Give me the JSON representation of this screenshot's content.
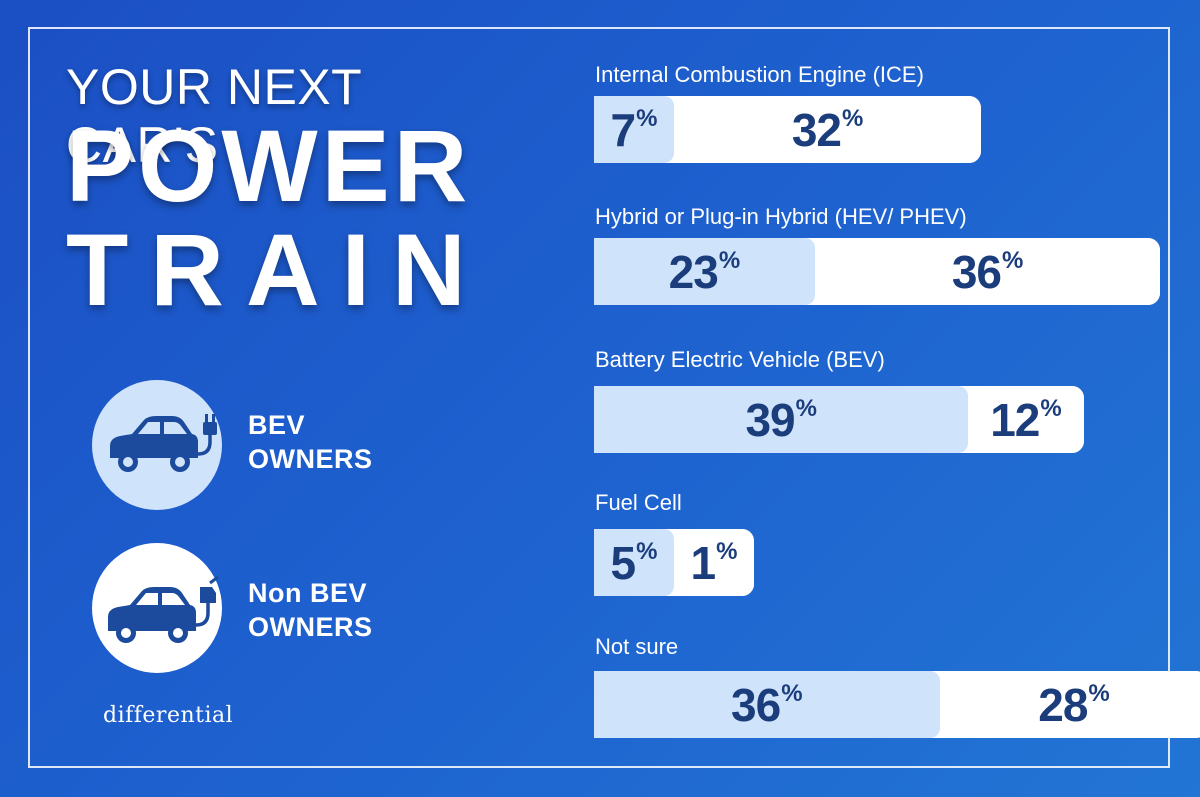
{
  "title": {
    "line1": "YOUR NEXT CAR’S",
    "line2": "POWER",
    "line3": "TRAIN"
  },
  "legend": {
    "bev": {
      "line1": "BEV",
      "line2": "OWNERS",
      "icon": "electric-car-plug-icon",
      "color": "#cfe3fb"
    },
    "non_bev": {
      "line1": "Non BEV",
      "line2": "OWNERS",
      "icon": "car-fuel-pump-icon",
      "color": "#ffffff"
    }
  },
  "brand": "differential",
  "colors": {
    "background": "#1e5fce",
    "text_values": "#1c3d7c",
    "bev": "#cfe3fb",
    "non_bev": "#ffffff"
  },
  "chart_data": {
    "type": "bar",
    "orientation": "horizontal",
    "stacked": true,
    "categories": [
      "Internal Combustion Engine (ICE)",
      "Hybrid or Plug-in Hybrid (HEV/ PHEV)",
      "Battery Electric Vehicle (BEV)",
      "Fuel Cell",
      "Not sure"
    ],
    "series": [
      {
        "name": "BEV OWNERS",
        "values": [
          7,
          23,
          39,
          5,
          36
        ],
        "color": "#cfe3fb"
      },
      {
        "name": "Non BEV OWNERS",
        "values": [
          32,
          36,
          12,
          1,
          28
        ],
        "color": "#ffffff"
      }
    ],
    "unit": "%",
    "grid": false
  }
}
